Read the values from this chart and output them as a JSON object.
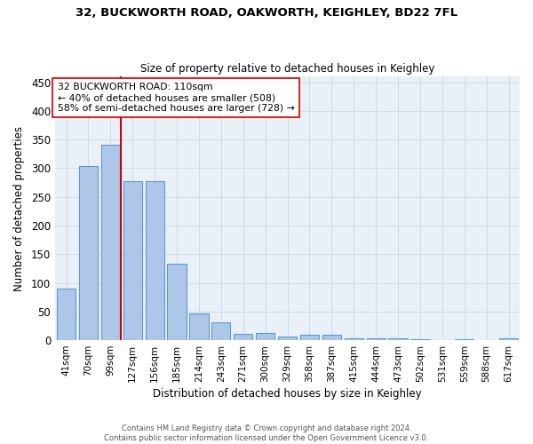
{
  "title1": "32, BUCKWORTH ROAD, OAKWORTH, KEIGHLEY, BD22 7FL",
  "title2": "Size of property relative to detached houses in Keighley",
  "xlabel": "Distribution of detached houses by size in Keighley",
  "ylabel": "Number of detached properties",
  "footer1": "Contains HM Land Registry data © Crown copyright and database right 2024.",
  "footer2": "Contains public sector information licensed under the Open Government Licence v3.0.",
  "categories": [
    "41sqm",
    "70sqm",
    "99sqm",
    "127sqm",
    "156sqm",
    "185sqm",
    "214sqm",
    "243sqm",
    "271sqm",
    "300sqm",
    "329sqm",
    "358sqm",
    "387sqm",
    "415sqm",
    "444sqm",
    "473sqm",
    "502sqm",
    "531sqm",
    "559sqm",
    "588sqm",
    "617sqm"
  ],
  "values": [
    90,
    303,
    341,
    278,
    278,
    134,
    47,
    31,
    11,
    13,
    7,
    9,
    9,
    3,
    3,
    3,
    1,
    0,
    1,
    0,
    3
  ],
  "bar_color": "#aec6e8",
  "bar_edge_color": "#5b9bd5",
  "bar_edge_width": 0.8,
  "grid_color": "#d0d8e8",
  "bg_color": "#eaf0f8",
  "red_line_color": "#cc0000",
  "annotation_line1": "32 BUCKWORTH ROAD: 110sqm",
  "annotation_line2": "← 40% of detached houses are smaller (508)",
  "annotation_line3": "58% of semi-detached houses are larger (728) →",
  "annotation_box_color": "white",
  "annotation_box_edge": "#cc0000",
  "ylim": [
    0,
    460
  ],
  "yticks": [
    0,
    50,
    100,
    150,
    "200",
    250,
    300,
    350,
    400,
    450
  ]
}
